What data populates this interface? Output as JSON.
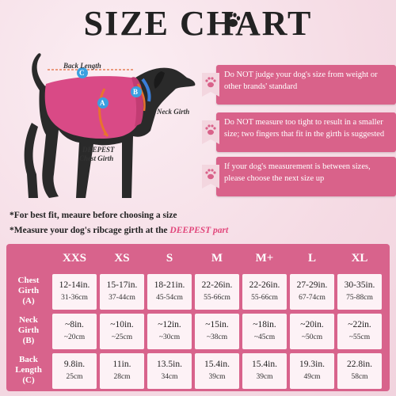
{
  "title": "SIZE CHART",
  "diagram_labels": {
    "back_length": "Back Length",
    "neck_girth": "Neck Girth",
    "deepest": "DEEPEST",
    "chest_girth": "Chest Girth",
    "marker_a": "A",
    "marker_b": "B",
    "marker_c": "C"
  },
  "tips": [
    "Do NOT judge your dog's size from weight or other brands' standard",
    "Do NOT measure too tight to result in a smaller size; two fingers that fit in the girth is suggested",
    "If your dog's measurement is between sizes, please choose the next size up"
  ],
  "notes": {
    "line1": "*For best fit, meaure before choosing a size",
    "line2_prefix": "*Measure your dog's ribcage girth at the ",
    "line2_highlight": "DEEPEST part"
  },
  "table": {
    "sizes": [
      "XXS",
      "XS",
      "S",
      "M",
      "M+",
      "L",
      "XL"
    ],
    "rows": [
      {
        "label_line1": "Chest",
        "label_line2": "Girth",
        "label_code": "(A)",
        "inches": [
          "12-14in.",
          "15-17in.",
          "18-21in.",
          "22-26in.",
          "22-26in.",
          "27-29in.",
          "30-35in."
        ],
        "cm": [
          "31-36cm",
          "37-44cm",
          "45-54cm",
          "55-66cm",
          "55-66cm",
          "67-74cm",
          "75-88cm"
        ]
      },
      {
        "label_line1": "Neck",
        "label_line2": "Girth",
        "label_code": "(B)",
        "inches": [
          "~8in.",
          "~10in.",
          "~12in.",
          "~15in.",
          "~18in.",
          "~20in.",
          "~22in."
        ],
        "cm": [
          "~20cm",
          "~25cm",
          "~30cm",
          "~38cm",
          "~45cm",
          "~50cm",
          "~55cm"
        ]
      },
      {
        "label_line1": "Back",
        "label_line2": "Length",
        "label_code": "(C)",
        "inches": [
          "9.8in.",
          "11in.",
          "13.5in.",
          "15.4in.",
          "15.4in.",
          "19.3in.",
          "22.8in."
        ],
        "cm": [
          "25cm",
          "28cm",
          "34cm",
          "39cm",
          "39cm",
          "49cm",
          "58cm"
        ]
      }
    ]
  },
  "colors": {
    "accent": "#d9628a",
    "highlight": "#e1457a",
    "cell_bg": "#fdf2f6",
    "dog": "#2a2a2a",
    "coat": "#d94a86"
  }
}
